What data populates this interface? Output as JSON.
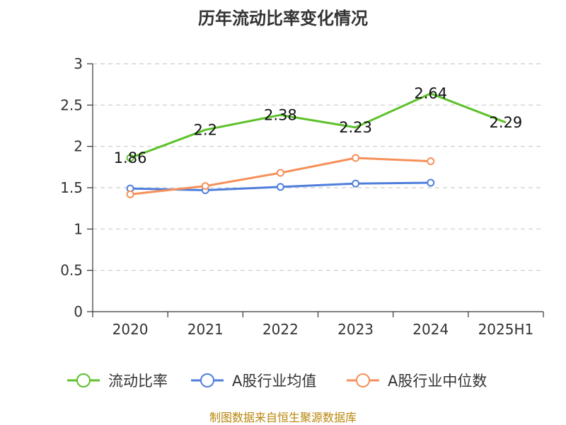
{
  "chart_data": {
    "type": "line",
    "title": "历年流动比率变化情况",
    "xlabel": "",
    "ylabel": "",
    "categories": [
      "2020",
      "2021",
      "2022",
      "2023",
      "2024",
      "2025H1"
    ],
    "ylim": [
      0,
      3
    ],
    "yticks": [
      0,
      0.5,
      1,
      1.5,
      2,
      2.5,
      3
    ],
    "ytick_labels": [
      "0",
      "0.5",
      "1",
      "1.5",
      "2",
      "2.5",
      "3"
    ],
    "grid": true,
    "legend_position": "bottom",
    "series": [
      {
        "name": "流动比率",
        "color": "#5ec12b",
        "values": [
          1.86,
          2.2,
          2.38,
          2.23,
          2.64,
          2.29
        ],
        "labels": [
          "1.86",
          "2.2",
          "2.38",
          "2.23",
          "2.64",
          "2.29"
        ],
        "marker": "none-except-first"
      },
      {
        "name": "A股行业均值",
        "color": "#4f7fdc",
        "values": [
          1.49,
          1.47,
          1.51,
          1.55,
          1.56,
          null
        ]
      },
      {
        "name": "A股行业中位数",
        "color": "#f6905a",
        "values": [
          1.42,
          1.52,
          1.68,
          1.86,
          1.82,
          null
        ]
      }
    ],
    "source": "制图数据来自恒生聚源数据库"
  }
}
